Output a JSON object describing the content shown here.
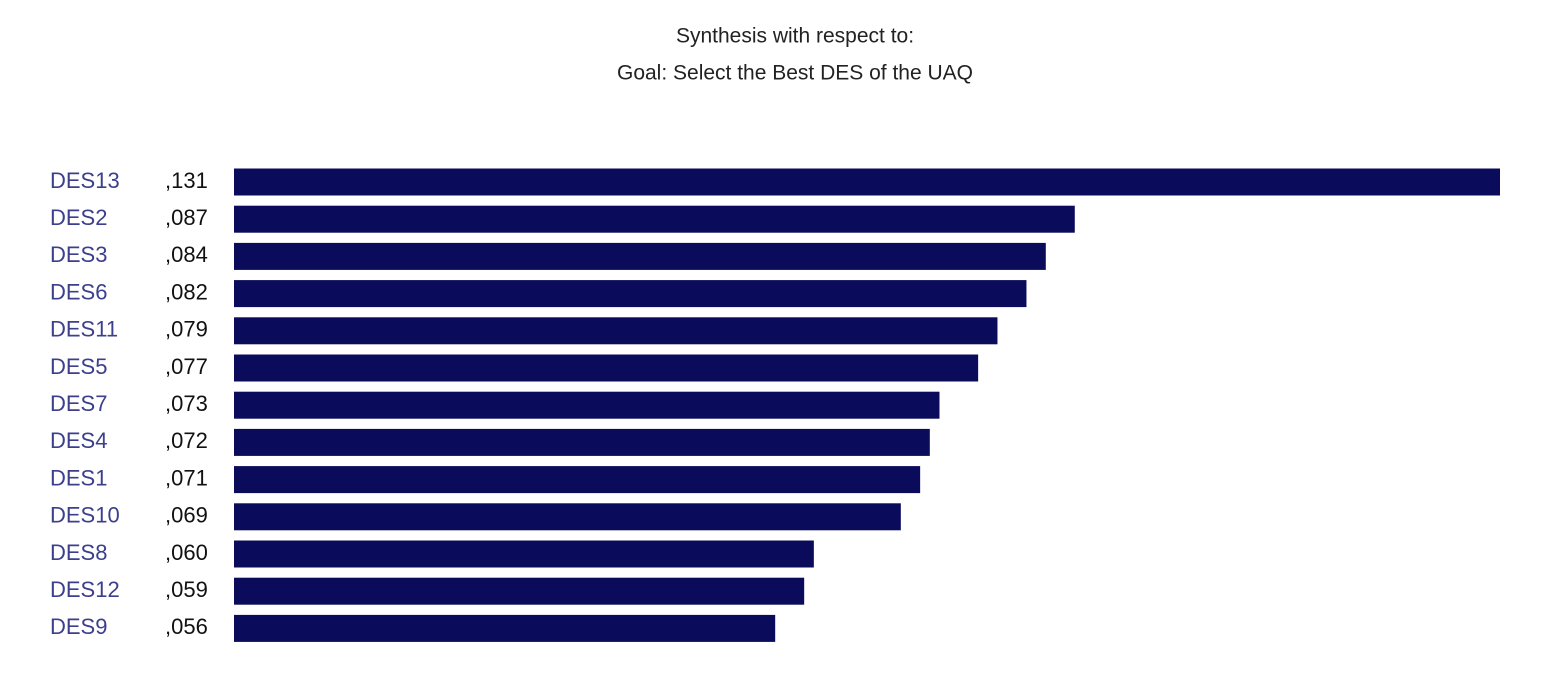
{
  "chart_data": {
    "type": "bar",
    "orientation": "horizontal",
    "title": "Synthesis with respect to:",
    "subtitle": "Goal: Select the Best DES of the UAQ",
    "categories": [
      "DES13",
      "DES2",
      "DES3",
      "DES6",
      "DES11",
      "DES5",
      "DES7",
      "DES4",
      "DES1",
      "DES10",
      "DES8",
      "DES12",
      "DES9"
    ],
    "values": [
      0.131,
      0.087,
      0.084,
      0.082,
      0.079,
      0.077,
      0.073,
      0.072,
      0.071,
      0.069,
      0.06,
      0.059,
      0.056
    ],
    "value_labels": [
      ",131",
      ",087",
      ",084",
      ",082",
      ",079",
      ",077",
      ",073",
      ",072",
      ",071",
      ",069",
      ",060",
      ",059",
      ",056"
    ],
    "color": "#0b0b5c"
  }
}
